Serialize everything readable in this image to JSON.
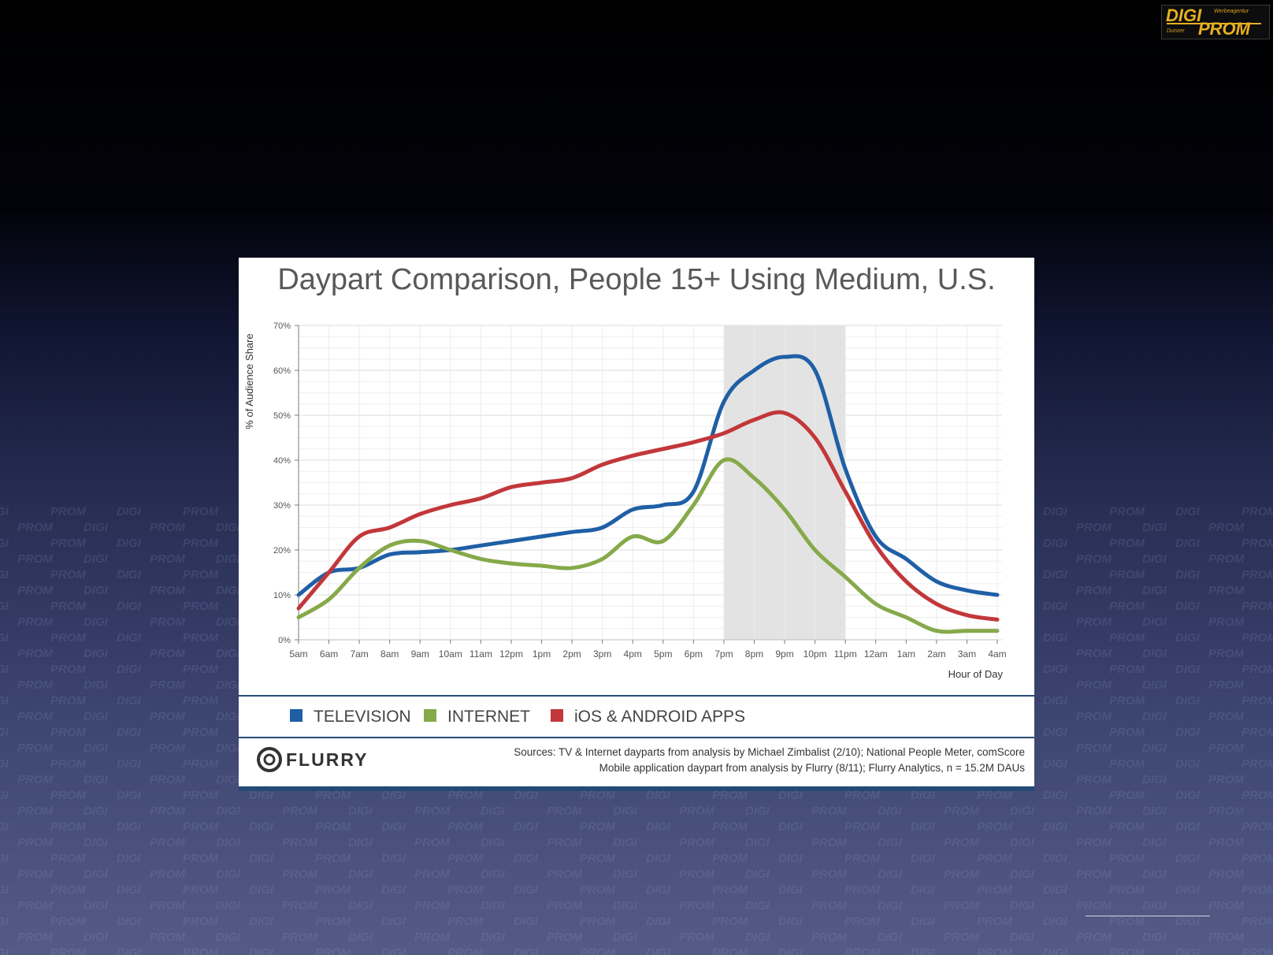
{
  "logo": {
    "text_top": "DIGI",
    "text_bottom": "PROM",
    "tag_top": "Werbeagentur",
    "tag_bottom": "Dunzer",
    "color": "#e8b020"
  },
  "chart_data": {
    "type": "line",
    "title": "Daypart Comparison, People 15+ Using Medium, U.S.",
    "xlabel": "Hour of Day",
    "ylabel": "% of Audience Share",
    "y_ticks": [
      "0%",
      "10%",
      "20%",
      "30%",
      "40%",
      "50%",
      "60%",
      "70%"
    ],
    "ylim": [
      0,
      70
    ],
    "grid": true,
    "highlight_band": [
      "7pm",
      "11pm"
    ],
    "x": [
      "5am",
      "6am",
      "7am",
      "8am",
      "9am",
      "10am",
      "11am",
      "12pm",
      "1pm",
      "2pm",
      "3pm",
      "4pm",
      "5pm",
      "6pm",
      "7pm",
      "8pm",
      "9pm",
      "10pm",
      "11pm",
      "12am",
      "1am",
      "2am",
      "3am",
      "4am"
    ],
    "series": [
      {
        "name": "TELEVISION",
        "color": "#1f5fa6",
        "values": [
          10,
          15,
          16,
          19,
          19.5,
          20,
          21,
          22,
          23,
          24,
          25,
          29,
          30,
          33,
          53,
          60,
          63,
          60,
          38,
          23,
          18,
          13,
          11,
          10
        ]
      },
      {
        "name": "INTERNET",
        "color": "#86a94a",
        "values": [
          5,
          9,
          16,
          21,
          22,
          20,
          18,
          17,
          16.5,
          16,
          18,
          23,
          22,
          30,
          40,
          36,
          29,
          20,
          14,
          8,
          5,
          2,
          2,
          2
        ]
      },
      {
        "name": "iOS & ANDROID APPS",
        "color": "#c2373a",
        "values": [
          7,
          15,
          23,
          25,
          28,
          30,
          31.5,
          34,
          35,
          36,
          39,
          41,
          42.5,
          44,
          46,
          49,
          50.5,
          45,
          33,
          21,
          13,
          8,
          5.5,
          4.5
        ]
      }
    ],
    "legend_position": "bottom",
    "footer_brand": "FLURRY",
    "sources_line1": "Sources: TV & Internet dayparts from analysis by Michael Zimbalist (2/10); National People Meter, comScore",
    "sources_line2": "Mobile application daypart from analysis by Flurry (8/11); Flurry Analytics, n = 15.2M DAUs"
  },
  "watermark_text": "DIGI PROM"
}
